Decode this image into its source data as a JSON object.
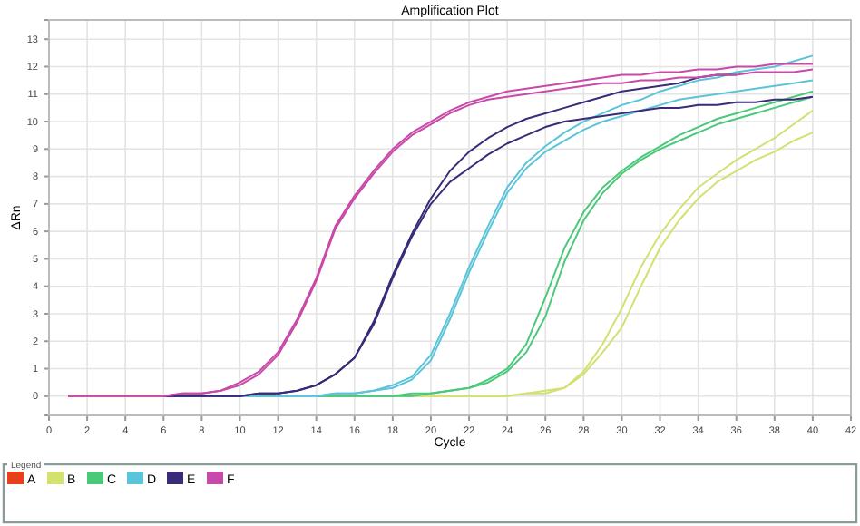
{
  "chart_data": {
    "type": "line",
    "title": "Amplification Plot",
    "xlabel": "Cycle",
    "ylabel": "ΔRn",
    "legend_title": "Legend",
    "legend": "bottom",
    "grid": true,
    "marker": "none",
    "line_style": "solid",
    "x": [
      1,
      2,
      3,
      4,
      5,
      6,
      7,
      8,
      9,
      10,
      11,
      12,
      13,
      14,
      15,
      16,
      17,
      18,
      19,
      20,
      21,
      22,
      23,
      24,
      25,
      26,
      27,
      28,
      29,
      30,
      31,
      32,
      33,
      34,
      35,
      36,
      37,
      38,
      39,
      40
    ],
    "xlim": [
      0,
      42
    ],
    "xticks": [
      0,
      2,
      4,
      6,
      8,
      10,
      12,
      14,
      16,
      18,
      20,
      22,
      24,
      26,
      28,
      30,
      32,
      34,
      36,
      38,
      40,
      42
    ],
    "ylim": [
      -0.7,
      13.7
    ],
    "yticks": [
      0,
      1,
      2,
      3,
      4,
      5,
      6,
      7,
      8,
      9,
      10,
      11,
      12,
      13
    ],
    "series": [
      {
        "name": "A",
        "color": "#e8401c",
        "values": [
          null,
          null,
          null,
          null,
          null,
          null,
          null,
          null,
          null,
          null,
          null,
          null,
          null,
          null,
          null,
          null,
          null,
          null,
          null,
          null,
          null,
          null,
          null,
          null,
          null,
          null,
          null,
          null,
          null,
          null,
          null,
          null,
          null,
          null,
          null,
          null,
          null,
          null,
          null,
          null
        ]
      },
      {
        "name": "B",
        "color": "#d4e070",
        "values": [
          null,
          null,
          null,
          null,
          null,
          null,
          null,
          null,
          null,
          null,
          null,
          null,
          null,
          null,
          null,
          null,
          null,
          0,
          0,
          0,
          0,
          0,
          0,
          0,
          0.1,
          0.2,
          0.3,
          0.9,
          1.9,
          3.2,
          4.7,
          5.9,
          6.8,
          7.6,
          8.1,
          8.6,
          9.0,
          9.4,
          9.9,
          10.4
        ]
      },
      {
        "color": "#d4e070",
        "values": [
          null,
          null,
          null,
          null,
          null,
          null,
          null,
          null,
          null,
          null,
          null,
          null,
          null,
          null,
          null,
          null,
          null,
          0,
          0,
          0,
          0,
          0,
          0,
          0,
          0.1,
          0.1,
          0.3,
          0.8,
          1.6,
          2.5,
          4.0,
          5.4,
          6.4,
          7.2,
          7.8,
          8.2,
          8.6,
          8.9,
          9.3,
          9.6
        ]
      },
      {
        "name": "C",
        "color": "#4cc87a",
        "values": [
          null,
          null,
          null,
          null,
          null,
          null,
          null,
          null,
          null,
          null,
          null,
          null,
          null,
          0,
          0,
          0,
          0,
          0,
          0.1,
          0.1,
          0.2,
          0.3,
          0.6,
          1.0,
          1.9,
          3.6,
          5.4,
          6.7,
          7.6,
          8.2,
          8.7,
          9.1,
          9.5,
          9.8,
          10.1,
          10.3,
          10.5,
          10.7,
          10.9,
          11.1
        ]
      },
      {
        "color": "#4cc87a",
        "values": [
          null,
          null,
          null,
          null,
          null,
          null,
          null,
          null,
          null,
          null,
          null,
          null,
          null,
          0,
          0,
          0,
          0,
          0,
          0,
          0.1,
          0.2,
          0.3,
          0.5,
          0.9,
          1.6,
          2.9,
          4.9,
          6.4,
          7.4,
          8.1,
          8.6,
          9.0,
          9.3,
          9.6,
          9.9,
          10.1,
          10.3,
          10.5,
          10.7,
          10.9
        ]
      },
      {
        "name": "D",
        "color": "#5cc4d8",
        "values": [
          null,
          null,
          null,
          null,
          null,
          null,
          null,
          null,
          null,
          0,
          0,
          0,
          0,
          0,
          0.1,
          0.1,
          0.2,
          0.4,
          0.7,
          1.5,
          3.0,
          4.7,
          6.2,
          7.6,
          8.5,
          9.1,
          9.6,
          10.0,
          10.3,
          10.6,
          10.8,
          11.1,
          11.3,
          11.5,
          11.6,
          11.8,
          11.9,
          12.0,
          12.2,
          12.4
        ]
      },
      {
        "color": "#5cc4d8",
        "values": [
          null,
          null,
          null,
          null,
          null,
          null,
          null,
          null,
          null,
          0,
          0,
          0,
          0,
          0,
          0.1,
          0.1,
          0.2,
          0.3,
          0.6,
          1.3,
          2.8,
          4.5,
          6.0,
          7.4,
          8.3,
          8.9,
          9.3,
          9.7,
          10.0,
          10.2,
          10.4,
          10.6,
          10.8,
          10.9,
          11.0,
          11.1,
          11.2,
          11.3,
          11.4,
          11.5
        ]
      },
      {
        "name": "E",
        "color": "#3a2a78",
        "values": [
          null,
          null,
          null,
          null,
          null,
          0,
          0,
          0,
          0,
          0,
          0.1,
          0.1,
          0.2,
          0.4,
          0.8,
          1.4,
          2.7,
          4.4,
          5.9,
          7.2,
          8.2,
          8.9,
          9.4,
          9.8,
          10.1,
          10.3,
          10.5,
          10.7,
          10.9,
          11.1,
          11.2,
          11.3,
          11.4,
          11.6,
          11.7,
          11.7,
          null,
          null,
          null,
          null
        ]
      },
      {
        "color": "#3a2a78",
        "values": [
          null,
          null,
          null,
          null,
          null,
          0,
          0,
          0,
          0,
          0,
          0.1,
          0.1,
          0.2,
          0.4,
          0.8,
          1.4,
          2.6,
          4.3,
          5.8,
          7.0,
          7.8,
          8.3,
          8.8,
          9.2,
          9.5,
          9.8,
          10.0,
          10.1,
          10.2,
          10.3,
          10.4,
          10.5,
          10.5,
          10.6,
          10.6,
          10.7,
          10.7,
          10.8,
          10.8,
          10.9
        ]
      },
      {
        "name": "F",
        "color": "#c84aa8",
        "values": [
          0,
          0,
          0,
          0,
          0,
          0,
          0.1,
          0.1,
          0.2,
          0.5,
          0.9,
          1.6,
          2.8,
          4.3,
          6.2,
          7.3,
          8.2,
          9.0,
          9.6,
          10.0,
          10.4,
          10.7,
          10.9,
          11.1,
          11.2,
          11.3,
          11.4,
          11.5,
          11.6,
          11.7,
          11.7,
          11.8,
          11.8,
          11.9,
          11.9,
          12.0,
          12.0,
          12.1,
          12.1,
          12.1
        ]
      },
      {
        "color": "#c84aa8",
        "values": [
          0,
          0,
          0,
          0,
          0,
          0,
          0.1,
          0.1,
          0.2,
          0.4,
          0.8,
          1.5,
          2.7,
          4.2,
          6.1,
          7.2,
          8.1,
          8.9,
          9.5,
          9.9,
          10.3,
          10.6,
          10.8,
          10.9,
          11.0,
          11.1,
          11.2,
          11.3,
          11.4,
          11.4,
          11.5,
          11.5,
          11.6,
          11.6,
          11.7,
          11.7,
          11.8,
          11.8,
          11.8,
          11.9
        ]
      }
    ]
  }
}
